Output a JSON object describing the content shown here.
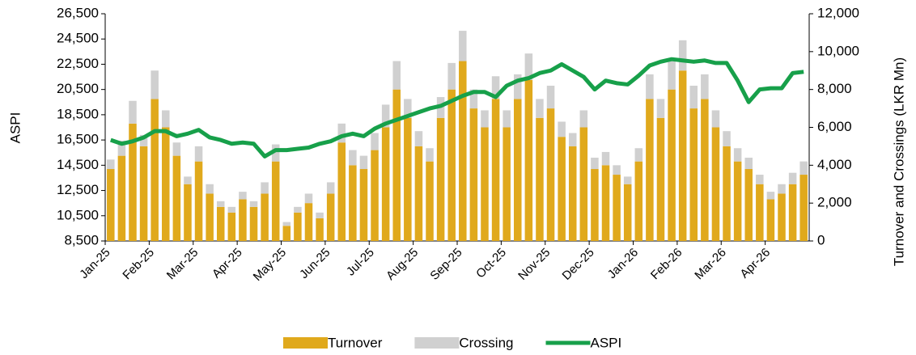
{
  "chart_data": {
    "type": "bar",
    "y_label": "ASPI",
    "y2_label": "Turnover and Crossings (LKR Mn)",
    "categories": [
      "Jan-25",
      null,
      null,
      null,
      "Feb-25",
      null,
      null,
      null,
      "Mar-25",
      null,
      null,
      null,
      "Apr-25",
      null,
      null,
      null,
      "May-25",
      null,
      null,
      null,
      "Jun-25",
      null,
      null,
      null,
      "Jul-25",
      null,
      null,
      null,
      "Aug-25",
      null,
      null,
      null,
      "Sep-25",
      null,
      null,
      null,
      "Oct-25",
      null,
      null,
      null,
      "Nov-25",
      null,
      null,
      null,
      "Dec-25",
      null,
      null,
      null,
      "Jan-26",
      null,
      null,
      null,
      "Feb-26",
      null,
      null,
      null,
      "Mar-26",
      null,
      null,
      null,
      "Apr-26",
      null,
      null,
      null
    ],
    "series": [
      {
        "name": "Turnover",
        "color": "#e0a91c",
        "axis": "y2",
        "values": [
          3800,
          4500,
          6200,
          5000,
          7500,
          6000,
          4500,
          3000,
          4200,
          2500,
          1800,
          1500,
          2200,
          1800,
          2500,
          4200,
          800,
          1500,
          2000,
          1200,
          2500,
          5200,
          4000,
          3800,
          4800,
          6000,
          8000,
          6500,
          5000,
          4200,
          6500,
          8000,
          9500,
          7000,
          6000,
          7500,
          6000,
          7500,
          8500,
          6500,
          7000,
          5500,
          5000,
          6000,
          3800,
          4000,
          3500,
          3000,
          4200,
          7500,
          6500,
          8000,
          9000,
          7000,
          7500,
          6000,
          5000,
          4200,
          3800,
          3000,
          2200,
          2500,
          3000,
          3500
        ]
      },
      {
        "name": "Crossing",
        "color": "#d0d0d0",
        "axis": "y2",
        "values": [
          500,
          800,
          1200,
          600,
          1500,
          900,
          700,
          400,
          800,
          500,
          300,
          300,
          400,
          300,
          600,
          900,
          200,
          300,
          500,
          300,
          600,
          1000,
          800,
          700,
          900,
          1200,
          1500,
          1000,
          800,
          700,
          1100,
          1400,
          1600,
          1000,
          900,
          1200,
          900,
          1300,
          1400,
          1000,
          1200,
          800,
          700,
          900,
          600,
          700,
          500,
          400,
          700,
          1300,
          1000,
          1500,
          1600,
          1200,
          1300,
          900,
          800,
          700,
          600,
          500,
          400,
          500,
          600,
          700
        ]
      },
      {
        "name": "ASPI",
        "color": "#17a04a",
        "type": "line",
        "values": [
          16500,
          16200,
          16400,
          16700,
          17200,
          17200,
          16800,
          17000,
          17300,
          16700,
          16500,
          16200,
          16300,
          16200,
          15200,
          15700,
          15700,
          15800,
          15900,
          16200,
          16400,
          16800,
          17000,
          16800,
          17400,
          17800,
          18100,
          18400,
          18700,
          19000,
          19200,
          19600,
          20000,
          20300,
          20300,
          19900,
          20800,
          21200,
          21400,
          21800,
          22000,
          22500,
          22000,
          21500,
          20500,
          21200,
          21000,
          20900,
          21600,
          22400,
          22700,
          22900,
          22800,
          22700,
          22800,
          22600,
          22600,
          21200,
          19500,
          20500,
          20600,
          20600,
          21800,
          21900
        ]
      }
    ],
    "ylim": [
      8500,
      26500
    ],
    "yticks": [
      {
        "value": 8500,
        "label": "8,500"
      },
      {
        "value": 10500,
        "label": "10,500"
      },
      {
        "value": 12500,
        "label": "12,500"
      },
      {
        "value": 14500,
        "label": "14,500"
      },
      {
        "value": 16500,
        "label": "16,500"
      },
      {
        "value": 18500,
        "label": "18,500"
      },
      {
        "value": 20500,
        "label": "20,500"
      },
      {
        "value": 22500,
        "label": "22,500"
      },
      {
        "value": 24500,
        "label": "24,500"
      },
      {
        "value": 26500,
        "label": "26,500"
      }
    ],
    "y2lim": [
      0,
      12000
    ],
    "y2ticks": [
      0,
      {
        "value": 2000,
        "label": "2,000"
      },
      {
        "value": 4000,
        "label": "4,000"
      },
      {
        "value": 6000,
        "label": "6,000"
      },
      {
        "value": 8000,
        "label": "8,000"
      },
      {
        "value": 10000,
        "label": "10,000"
      },
      {
        "value": 12000,
        "label": "12,000"
      }
    ],
    "legend": "bottom"
  }
}
